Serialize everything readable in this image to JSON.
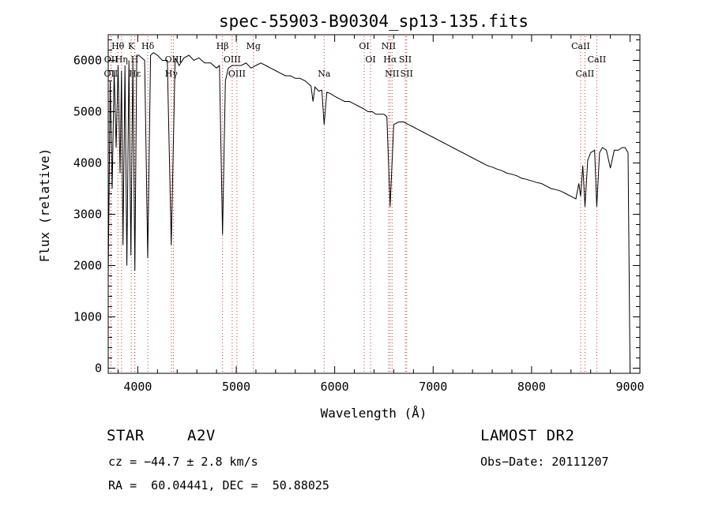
{
  "chart_data": {
    "type": "line",
    "title": "spec-55903-B90304_sp13-135.fits",
    "xlabel": "Wavelength (Å)",
    "ylabel": "Flux (relative)",
    "xlim": [
      3700,
      9100
    ],
    "ylim": [
      -100,
      6500
    ],
    "xticks": [
      4000,
      5000,
      6000,
      7000,
      8000,
      9000
    ],
    "yticks": [
      0,
      1000,
      2000,
      3000,
      4000,
      5000,
      6000
    ],
    "grid": false,
    "series": [
      {
        "x": [
          3700,
          3720,
          3740,
          3760,
          3780,
          3800,
          3820,
          3835,
          3850,
          3870,
          3889,
          3910,
          3930,
          3950,
          3970,
          3990,
          4010,
          4040,
          4070,
          4101,
          4130,
          4160,
          4200,
          4250,
          4300,
          4340,
          4380,
          4420,
          4470,
          4520,
          4570,
          4620,
          4680,
          4740,
          4800,
          4830,
          4861,
          4890,
          4920,
          4960,
          5000,
          5050,
          5100,
          5150,
          5200,
          5250,
          5300,
          5350,
          5400,
          5450,
          5500,
          5550,
          5600,
          5650,
          5700,
          5760,
          5780,
          5800,
          5840,
          5870,
          5893,
          5920,
          5960,
          6000,
          6050,
          6100,
          6150,
          6200,
          6250,
          6300,
          6340,
          6380,
          6420,
          6460,
          6500,
          6530,
          6563,
          6600,
          6650,
          6700,
          6750,
          6800,
          6850,
          6900,
          6950,
          7000,
          7050,
          7100,
          7150,
          7200,
          7250,
          7300,
          7350,
          7400,
          7450,
          7500,
          7550,
          7600,
          7650,
          7700,
          7750,
          7800,
          7850,
          7900,
          7950,
          8000,
          8050,
          8100,
          8150,
          8200,
          8250,
          8300,
          8350,
          8400,
          8450,
          8480,
          8498,
          8520,
          8542,
          8570,
          8600,
          8640,
          8662,
          8690,
          8720,
          8760,
          8800,
          8840,
          8880,
          8920,
          8950,
          8980,
          9000
        ],
        "y": [
          1800,
          5600,
          3500,
          5800,
          4300,
          5900,
          3800,
          5800,
          2400,
          5900,
          2000,
          6000,
          2200,
          6000,
          1900,
          6100,
          6100,
          6050,
          6000,
          2150,
          6100,
          6150,
          6100,
          6000,
          6000,
          2400,
          6050,
          5900,
          6050,
          6100,
          6000,
          6050,
          5950,
          5950,
          5850,
          5900,
          2600,
          5600,
          5850,
          5900,
          5900,
          5900,
          5950,
          5850,
          5900,
          5950,
          5900,
          5850,
          5800,
          5750,
          5700,
          5700,
          5650,
          5650,
          5600,
          5500,
          5200,
          5480,
          5400,
          5420,
          4750,
          5380,
          5350,
          5300,
          5250,
          5200,
          5200,
          5150,
          5100,
          5050,
          5000,
          5000,
          4950,
          4950,
          4950,
          4900,
          3150,
          4750,
          4800,
          4800,
          4750,
          4700,
          4650,
          4600,
          4550,
          4500,
          4450,
          4400,
          4350,
          4300,
          4250,
          4200,
          4150,
          4100,
          4050,
          4000,
          3950,
          3920,
          3880,
          3850,
          3800,
          3780,
          3750,
          3700,
          3680,
          3650,
          3620,
          3600,
          3550,
          3500,
          3480,
          3450,
          3400,
          3350,
          3300,
          3600,
          3350,
          3950,
          3150,
          4050,
          4200,
          4250,
          3150,
          4200,
          4300,
          4250,
          3900,
          4250,
          4250,
          4300,
          4300,
          4200,
          0
        ]
      }
    ],
    "lines": [
      {
        "name": "Hθ",
        "wavelength": 3798,
        "label_row": 1
      },
      {
        "name": "Hη",
        "wavelength": 3835,
        "label_row": 2
      },
      {
        "name": "OII",
        "wavelength": 3727,
        "label_row": 3
      },
      {
        "name": "OII",
        "wavelength": 3729,
        "label_row": 2
      },
      {
        "name": "K",
        "wavelength": 3934,
        "label_row": 1
      },
      {
        "name": "H",
        "wavelength": 3969,
        "label_row": 2
      },
      {
        "name": "Hδ",
        "wavelength": 4102,
        "label_row": 1
      },
      {
        "name": "Hε",
        "wavelength": 3970,
        "label_row": 3
      },
      {
        "name": "OIII",
        "wavelength": 4363,
        "label_row": 2
      },
      {
        "name": "Hγ",
        "wavelength": 4341,
        "label_row": 3
      },
      {
        "name": "Hβ",
        "wavelength": 4861,
        "label_row": 1
      },
      {
        "name": "OIII",
        "wavelength": 4959,
        "label_row": 2
      },
      {
        "name": "OIII",
        "wavelength": 5007,
        "label_row": 3
      },
      {
        "name": "Mg",
        "wavelength": 5175,
        "label_row": 1
      },
      {
        "name": "Na",
        "wavelength": 5893,
        "label_row": 3
      },
      {
        "name": "OI",
        "wavelength": 6300,
        "label_row": 1
      },
      {
        "name": "OI",
        "wavelength": 6364,
        "label_row": 2
      },
      {
        "name": "NII",
        "wavelength": 6548,
        "label_row": 1
      },
      {
        "name": "Hα",
        "wavelength": 6563,
        "label_row": 2
      },
      {
        "name": "SII",
        "wavelength": 6717,
        "label_row": 2
      },
      {
        "name": "NII",
        "wavelength": 6583,
        "label_row": 3
      },
      {
        "name": "SII",
        "wavelength": 6731,
        "label_row": 3
      },
      {
        "name": "CaII",
        "wavelength": 8498,
        "label_row": 1
      },
      {
        "name": "CaII",
        "wavelength": 8662,
        "label_row": 2
      },
      {
        "name": "CaII",
        "wavelength": 8542,
        "label_row": 3
      }
    ]
  },
  "info": {
    "object_class": "STAR",
    "subclass": "A2V",
    "survey": "LAMOST DR2",
    "cz": "cz = −44.7 ± 2.8 km/s",
    "obs_date": "Obs−Date: 20111207",
    "coords": "RA =  60.04441, DEC =  50.88025"
  }
}
